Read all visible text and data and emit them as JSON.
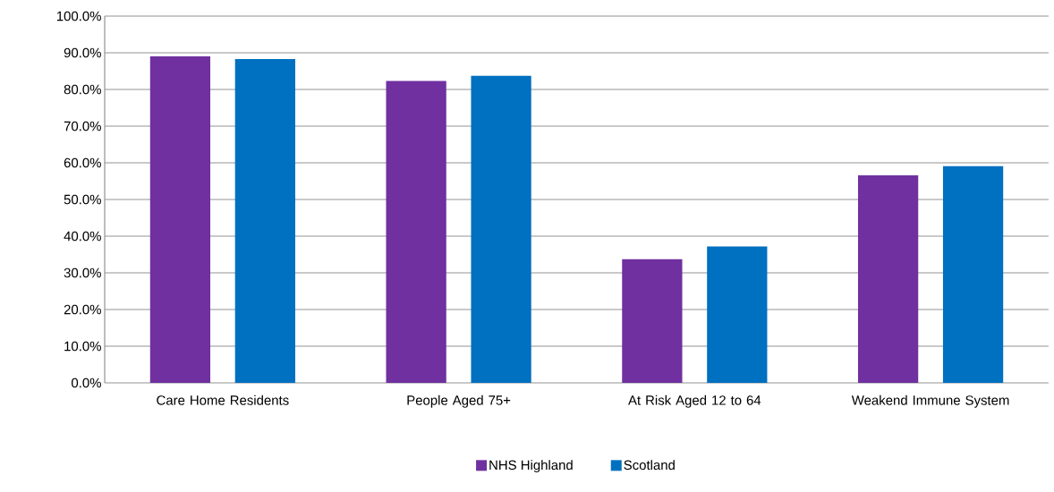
{
  "chart_data": {
    "type": "bar",
    "categories": [
      "Care Home Residents",
      "People Aged 75+",
      "At Risk Aged 12 to 64",
      "Weakend Immune System"
    ],
    "series": [
      {
        "name": "NHS Highland",
        "color": "#7030a0",
        "values": [
          89.0,
          82.3,
          33.7,
          56.6
        ]
      },
      {
        "name": "Scotland",
        "color": "#0070c0",
        "values": [
          88.3,
          83.7,
          37.2,
          59.1
        ]
      }
    ],
    "ylim": [
      0,
      100
    ],
    "yticks": [
      {
        "value": 0,
        "label": "0.0%"
      },
      {
        "value": 10,
        "label": "10.0%"
      },
      {
        "value": 20,
        "label": "20.0%"
      },
      {
        "value": 30,
        "label": "30.0%"
      },
      {
        "value": 40,
        "label": "40.0%"
      },
      {
        "value": 50,
        "label": "50.0%"
      },
      {
        "value": 60,
        "label": "60.0%"
      },
      {
        "value": 70,
        "label": "70.0%"
      },
      {
        "value": 80,
        "label": "80.0%"
      },
      {
        "value": 90,
        "label": "90.0%"
      },
      {
        "value": 100,
        "label": "100.0%"
      }
    ],
    "grid": "y",
    "legend": "bottom"
  }
}
